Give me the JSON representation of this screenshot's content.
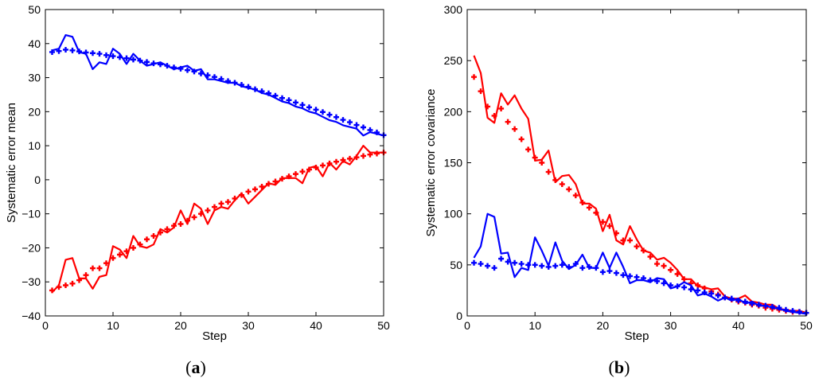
{
  "chart_data": [
    {
      "type": "line",
      "panel": "(a)",
      "panel_letter": "a",
      "xlabel": "Step",
      "ylabel": "Systematic error mean",
      "xlim": [
        0,
        50
      ],
      "ylim": [
        -40,
        50
      ],
      "xticks": [
        0,
        10,
        20,
        30,
        40,
        50
      ],
      "yticks": [
        -40,
        -30,
        -20,
        -10,
        0,
        10,
        20,
        30,
        40,
        50
      ],
      "grid": false,
      "series": [
        {
          "style": "solid",
          "color": "#0000ff",
          "x": [
            1,
            2,
            3,
            4,
            5,
            6,
            7,
            8,
            9,
            10,
            11,
            12,
            13,
            14,
            15,
            16,
            17,
            18,
            19,
            20,
            21,
            22,
            23,
            24,
            25,
            26,
            27,
            28,
            29,
            30,
            31,
            32,
            33,
            34,
            35,
            36,
            37,
            38,
            39,
            40,
            41,
            42,
            43,
            44,
            45,
            46,
            47,
            48,
            49,
            50
          ],
          "y": [
            38,
            38.5,
            42.5,
            42,
            37.5,
            37,
            32.5,
            34.5,
            34,
            38.5,
            37,
            34,
            37,
            35,
            33.5,
            34,
            34.5,
            33.5,
            32.5,
            33,
            33.5,
            32,
            32.5,
            29.5,
            29.5,
            29,
            28.5,
            28.5,
            27.5,
            27,
            26.5,
            25.5,
            25,
            24,
            23,
            22.5,
            21.5,
            21,
            20,
            19.5,
            18.5,
            17.5,
            17,
            16,
            15.5,
            15,
            13,
            14,
            13.5,
            13
          ]
        },
        {
          "style": "marker",
          "marker": "+",
          "color": "#0000ff",
          "x": [
            1,
            2,
            3,
            4,
            5,
            6,
            7,
            8,
            9,
            10,
            11,
            12,
            13,
            14,
            15,
            16,
            17,
            18,
            19,
            20,
            21,
            22,
            23,
            24,
            25,
            26,
            27,
            28,
            29,
            30,
            31,
            32,
            33,
            34,
            35,
            36,
            37,
            38,
            39,
            40,
            41,
            42,
            43,
            44,
            45,
            46,
            47,
            48,
            49,
            50
          ],
          "y": [
            37.5,
            37.8,
            38.2,
            38,
            37.7,
            37.4,
            37.2,
            37,
            36.6,
            36.3,
            36,
            35.7,
            35.3,
            35,
            34.6,
            34.2,
            33.9,
            33.5,
            33,
            32.6,
            32.2,
            31.8,
            31.2,
            30.7,
            30.2,
            29.6,
            29,
            28.5,
            27.9,
            27.3,
            26.6,
            26,
            25.4,
            24.7,
            24,
            23.4,
            22.7,
            22,
            21.3,
            20.6,
            19.9,
            19.1,
            18.4,
            17.6,
            16.9,
            16.1,
            15.4,
            14.6,
            13.9,
            13.1
          ]
        },
        {
          "style": "solid",
          "color": "#ff0000",
          "x": [
            1,
            2,
            3,
            4,
            5,
            6,
            7,
            8,
            9,
            10,
            11,
            12,
            13,
            14,
            15,
            16,
            17,
            18,
            19,
            20,
            21,
            22,
            23,
            24,
            25,
            26,
            27,
            28,
            29,
            30,
            31,
            32,
            33,
            34,
            35,
            36,
            37,
            38,
            39,
            40,
            41,
            42,
            43,
            44,
            45,
            46,
            47,
            48,
            49,
            50
          ],
          "y": [
            -33,
            -31,
            -23.5,
            -23,
            -29,
            -29,
            -32,
            -28.5,
            -28,
            -19.5,
            -20.5,
            -23,
            -16.5,
            -19.5,
            -20,
            -19,
            -14.5,
            -15.5,
            -14,
            -9,
            -13,
            -7,
            -8.5,
            -13,
            -9,
            -8,
            -8.5,
            -6,
            -4,
            -7,
            -5,
            -3,
            -1,
            -1.5,
            0.5,
            0.5,
            0.5,
            -1,
            3.5,
            4,
            1,
            5,
            3,
            5.5,
            4.5,
            7,
            10,
            8,
            8,
            8
          ]
        },
        {
          "style": "marker",
          "marker": "+",
          "color": "#ff0000",
          "x": [
            1,
            2,
            3,
            4,
            5,
            6,
            7,
            8,
            9,
            10,
            11,
            12,
            13,
            14,
            15,
            16,
            17,
            18,
            19,
            20,
            21,
            22,
            23,
            24,
            25,
            26,
            27,
            28,
            29,
            30,
            31,
            32,
            33,
            34,
            35,
            36,
            37,
            38,
            39,
            40,
            41,
            42,
            43,
            44,
            45,
            46,
            47,
            48,
            49,
            50
          ],
          "y": [
            -32.5,
            -31.5,
            -31,
            -30.5,
            -29.5,
            -28,
            -26,
            -26,
            -24.5,
            -23,
            -22,
            -21,
            -20,
            -19,
            -17.5,
            -16.5,
            -15.5,
            -14.5,
            -13.5,
            -13,
            -12,
            -11,
            -10,
            -9,
            -8,
            -7,
            -6.5,
            -5.5,
            -4.5,
            -3.5,
            -2.8,
            -2,
            -1.2,
            -0.5,
            0.3,
            1,
            1.7,
            2.4,
            3,
            3.6,
            4.2,
            4.8,
            5.3,
            5.8,
            6.2,
            6.6,
            7,
            7.4,
            7.7,
            8
          ]
        }
      ]
    },
    {
      "type": "line",
      "panel": "(b)",
      "panel_letter": "b",
      "xlabel": "Step",
      "ylabel": "Systematic error covariance",
      "xlim": [
        0,
        50
      ],
      "ylim": [
        0,
        300
      ],
      "xticks": [
        0,
        10,
        20,
        30,
        40,
        50
      ],
      "yticks": [
        0,
        50,
        100,
        150,
        200,
        250,
        300
      ],
      "grid": false,
      "series": [
        {
          "style": "solid",
          "color": "#ff0000",
          "x": [
            1,
            2,
            3,
            4,
            5,
            6,
            7,
            8,
            9,
            10,
            11,
            12,
            13,
            14,
            15,
            16,
            17,
            18,
            19,
            20,
            21,
            22,
            23,
            24,
            25,
            26,
            27,
            28,
            29,
            30,
            31,
            32,
            33,
            34,
            35,
            36,
            37,
            38,
            39,
            40,
            41,
            42,
            43,
            44,
            45,
            46,
            47,
            48,
            49,
            50
          ],
          "y": [
            255,
            238,
            194,
            189,
            218,
            207,
            216,
            203,
            193,
            152,
            153,
            162,
            131,
            137,
            138,
            129,
            110,
            110,
            105,
            83,
            99,
            74,
            70,
            88,
            75,
            64,
            62,
            55,
            57,
            52,
            45,
            36,
            36,
            29,
            28,
            26,
            27,
            19,
            17,
            17,
            20,
            14,
            13,
            11,
            11,
            7,
            6,
            5,
            5,
            3
          ]
        },
        {
          "style": "marker",
          "marker": "+",
          "color": "#ff0000",
          "x": [
            1,
            2,
            3,
            4,
            5,
            6,
            7,
            8,
            9,
            10,
            11,
            12,
            13,
            14,
            15,
            16,
            17,
            18,
            19,
            20,
            21,
            22,
            23,
            24,
            25,
            26,
            27,
            28,
            29,
            30,
            31,
            32,
            33,
            34,
            35,
            36,
            37,
            38,
            39,
            40,
            41,
            42,
            43,
            44,
            45,
            46,
            47,
            48,
            49,
            50
          ],
          "y": [
            234,
            220,
            205,
            196,
            203,
            190,
            183,
            173,
            163,
            155,
            150,
            141,
            133,
            129,
            124,
            118,
            111,
            106,
            101,
            92,
            88,
            81,
            74,
            74,
            68,
            64,
            58,
            51,
            49,
            45,
            41,
            36,
            32,
            30,
            27,
            24,
            21,
            18,
            16,
            14,
            13,
            11,
            10,
            8,
            7,
            6,
            5,
            4,
            4,
            3
          ]
        },
        {
          "style": "solid",
          "color": "#0000ff",
          "x": [
            1,
            2,
            3,
            4,
            5,
            6,
            7,
            8,
            9,
            10,
            11,
            12,
            13,
            14,
            15,
            16,
            17,
            18,
            19,
            20,
            21,
            22,
            23,
            24,
            25,
            26,
            27,
            28,
            29,
            30,
            31,
            32,
            33,
            34,
            35,
            36,
            37,
            38,
            39,
            40,
            41,
            42,
            43,
            44,
            45,
            46,
            47,
            48,
            49,
            50
          ],
          "y": [
            57,
            68,
            100,
            97,
            61,
            62,
            38,
            47,
            45,
            77,
            64,
            49,
            72,
            54,
            46,
            50,
            60,
            47,
            47,
            62,
            47,
            62,
            48,
            32,
            35,
            35,
            33,
            37,
            36,
            27,
            29,
            33,
            30,
            20,
            22,
            19,
            15,
            18,
            15,
            17,
            12,
            14,
            10,
            10,
            8,
            7,
            5,
            4,
            3,
            2
          ]
        },
        {
          "style": "marker",
          "marker": "+",
          "color": "#0000ff",
          "x": [
            1,
            2,
            3,
            4,
            5,
            6,
            7,
            8,
            9,
            10,
            11,
            12,
            13,
            14,
            15,
            16,
            17,
            18,
            19,
            20,
            21,
            22,
            23,
            24,
            25,
            26,
            27,
            28,
            29,
            30,
            31,
            32,
            33,
            34,
            35,
            36,
            37,
            38,
            39,
            40,
            41,
            42,
            43,
            44,
            45,
            46,
            47,
            48,
            49,
            50
          ],
          "y": [
            52,
            51,
            49,
            47,
            56,
            53,
            52,
            51,
            50,
            50,
            49,
            48,
            49,
            50,
            48,
            51,
            47,
            48,
            47,
            43,
            44,
            42,
            40,
            39,
            38,
            37,
            35,
            34,
            32,
            30,
            29,
            28,
            26,
            25,
            23,
            22,
            20,
            18,
            17,
            15,
            14,
            12,
            11,
            10,
            9,
            8,
            6,
            5,
            4,
            3
          ]
        }
      ]
    }
  ]
}
